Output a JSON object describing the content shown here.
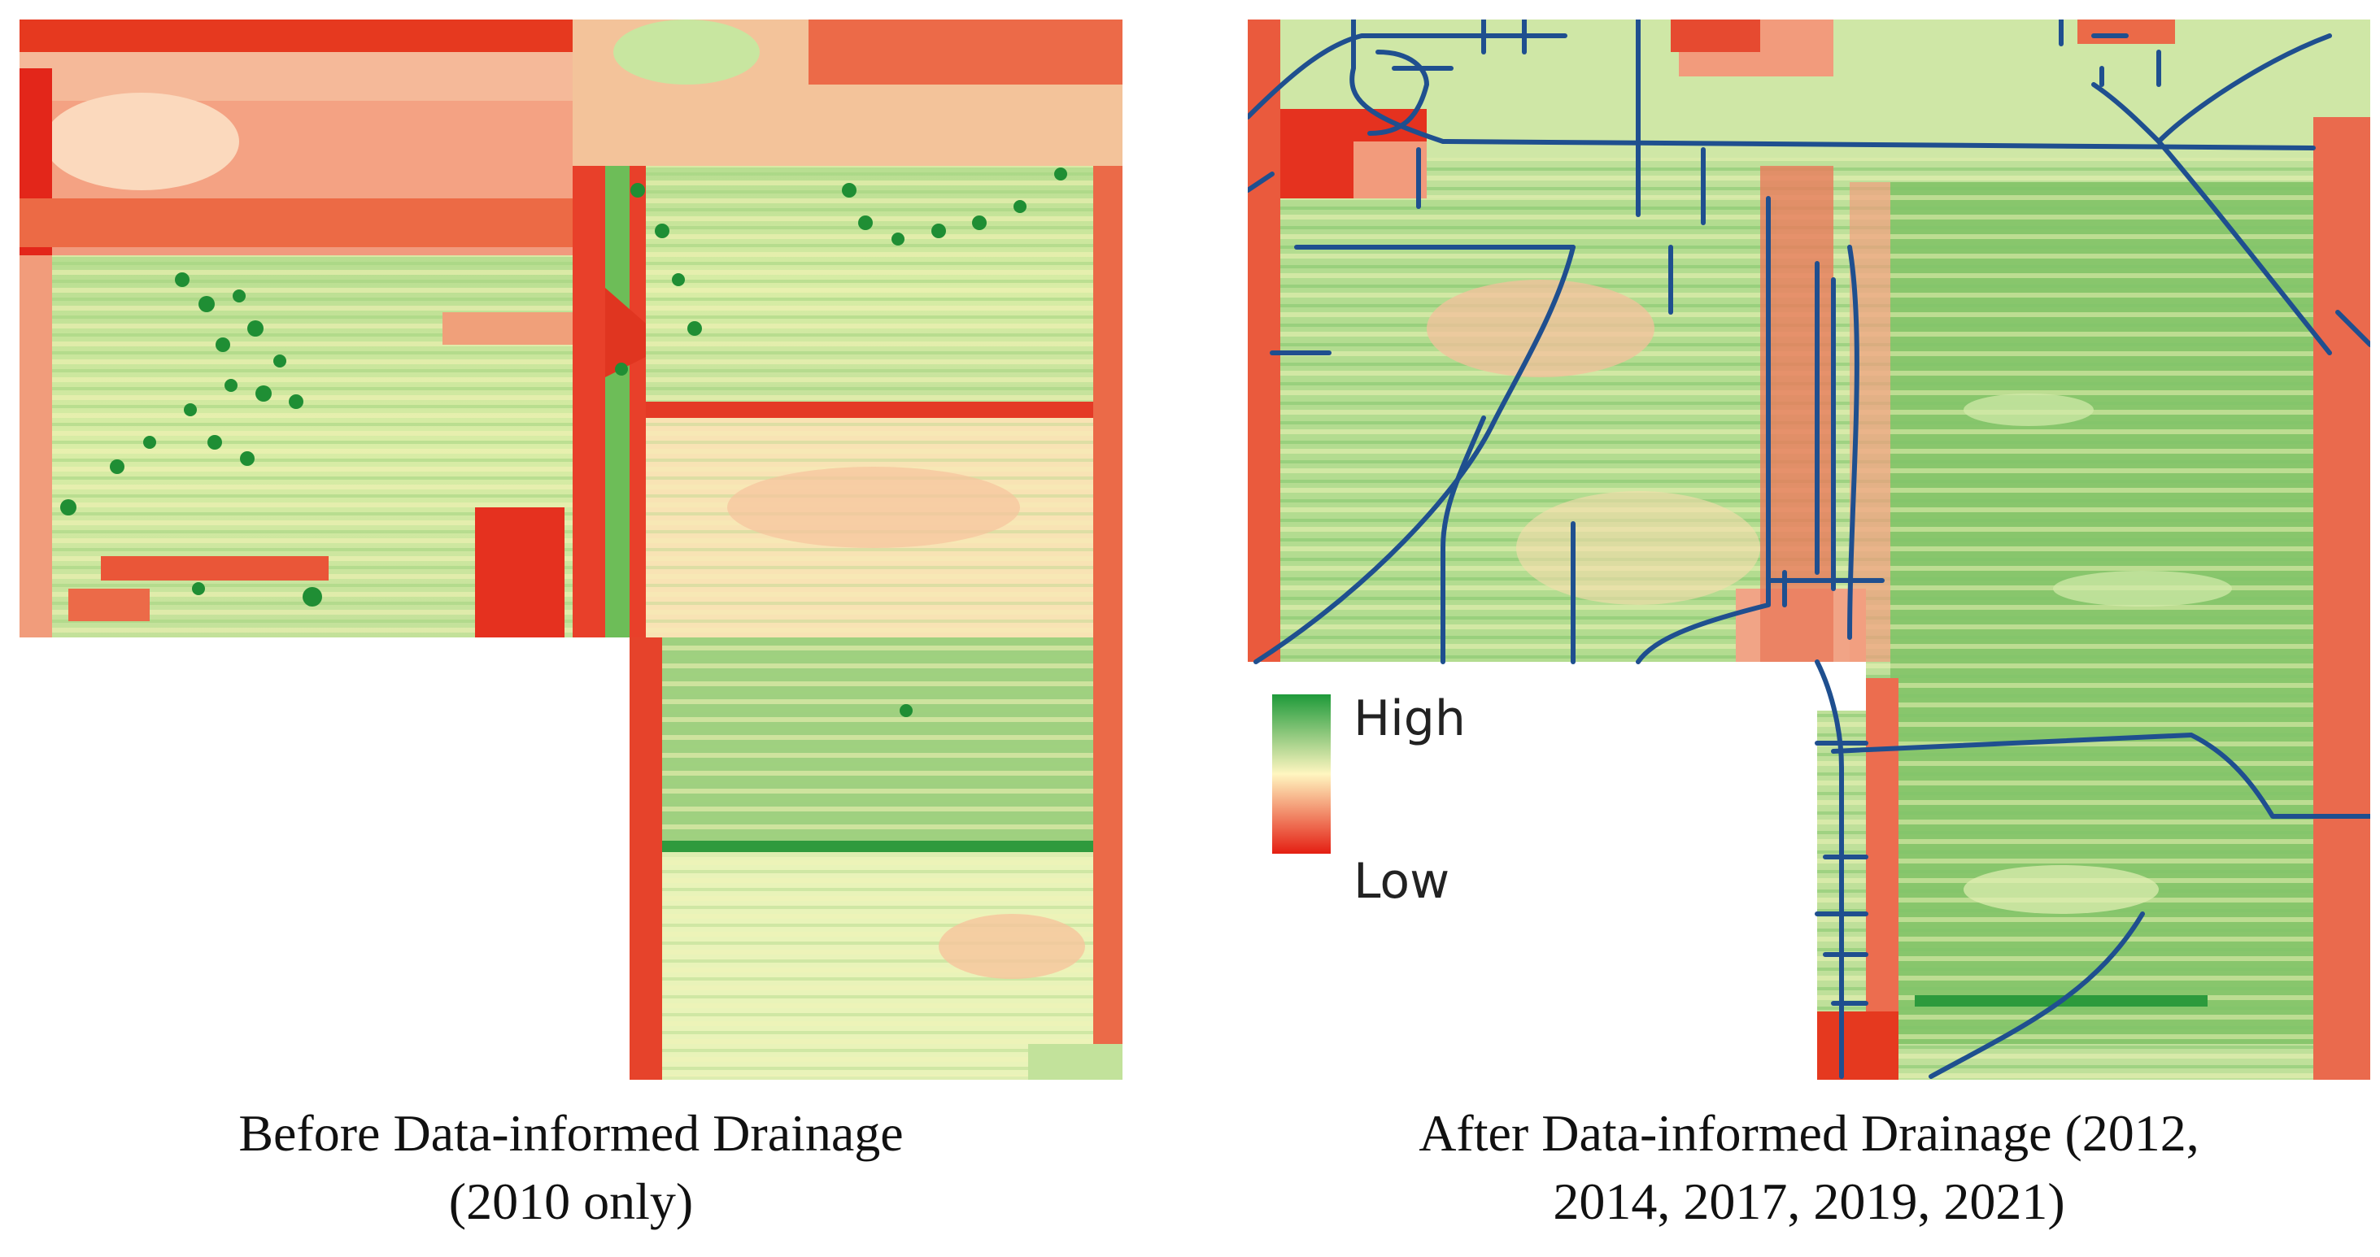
{
  "left_panel": {
    "caption_line1": "Before Data-informed Drainage",
    "caption_line2": "(2010 only)"
  },
  "right_panel": {
    "caption_line1": "After Data-informed Drainage (2012,",
    "caption_line2": "2014, 2017, 2019, 2021)"
  },
  "legend": {
    "high_label": "High",
    "low_label": "Low",
    "high_color": "#1e9a3a",
    "mid_color": "#fff6c0",
    "low_color": "#e41e12"
  },
  "colors": {
    "drain_line": "#1f4f8f"
  }
}
